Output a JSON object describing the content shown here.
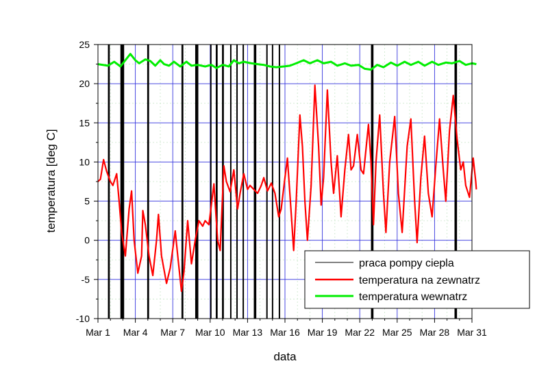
{
  "chart_data": {
    "type": "line",
    "xlabel": "data",
    "ylabel": "temperatura [deg C]",
    "xlim": [
      0,
      30
    ],
    "ylim": [
      -10,
      25
    ],
    "x_ticks": [
      0,
      3,
      6,
      9,
      12,
      15,
      18,
      21,
      24,
      27,
      30
    ],
    "x_tick_labels": [
      "Mar 1",
      "Mar 4",
      "Mar 7",
      "Mar 10",
      "Mar 13",
      "Mar 16",
      "Mar 19",
      "Mar 22",
      "Mar 25",
      "Mar 28",
      "Mar 31"
    ],
    "y_ticks": [
      -10,
      -5,
      0,
      5,
      10,
      15,
      20,
      25
    ],
    "y_tick_labels": [
      "-10",
      "-5",
      "0",
      "5",
      "10",
      "15",
      "20",
      "25"
    ],
    "grid": true,
    "legend_position": "bottom-right",
    "series": [
      {
        "name": "praca pompy ciepla",
        "color": "#000000",
        "style": "vertical-bars",
        "intervals": [
          [
            0.8,
            0.95
          ],
          [
            1.8,
            2.1
          ],
          [
            3.95,
            4.1
          ],
          [
            6.7,
            6.85
          ],
          [
            7.8,
            8.05
          ],
          [
            9.0,
            9.1
          ],
          [
            9.45,
            9.6
          ],
          [
            9.95,
            10.1
          ],
          [
            10.6,
            10.7
          ],
          [
            11.1,
            11.2
          ],
          [
            11.6,
            11.7
          ],
          [
            12.5,
            12.7
          ],
          [
            13.5,
            13.6
          ],
          [
            13.95,
            14.05
          ],
          [
            14.5,
            14.6
          ],
          [
            21.9,
            22.1
          ],
          [
            28.6,
            28.8
          ]
        ]
      },
      {
        "name": "temperatura na zewnatrz",
        "color": "#ff0000",
        "points": [
          [
            0,
            7.5
          ],
          [
            0.2,
            7.8
          ],
          [
            0.45,
            10.3
          ],
          [
            0.7,
            8.8
          ],
          [
            1,
            7.5
          ],
          [
            1.2,
            7.0
          ],
          [
            1.5,
            8.5
          ],
          [
            1.7,
            5
          ],
          [
            1.9,
            1
          ],
          [
            2.2,
            -2
          ],
          [
            2.5,
            4
          ],
          [
            2.7,
            6.3
          ],
          [
            2.9,
            0
          ],
          [
            3.2,
            -4.2
          ],
          [
            3.5,
            -2
          ],
          [
            3.6,
            3.8
          ],
          [
            3.8,
            2
          ],
          [
            4.1,
            -2
          ],
          [
            4.4,
            -4.5
          ],
          [
            4.7,
            0
          ],
          [
            4.85,
            3.3
          ],
          [
            5.1,
            -2
          ],
          [
            5.5,
            -5.5
          ],
          [
            5.8,
            -3.5
          ],
          [
            6.2,
            1.2
          ],
          [
            6.4,
            -2
          ],
          [
            6.7,
            -6.5
          ],
          [
            6.9,
            -4
          ],
          [
            7.2,
            2.5
          ],
          [
            7.5,
            -3
          ],
          [
            7.8,
            0
          ],
          [
            8.1,
            2.5
          ],
          [
            8.4,
            1.8
          ],
          [
            8.6,
            2.5
          ],
          [
            8.9,
            2
          ],
          [
            9.3,
            7.2
          ],
          [
            9.6,
            0
          ],
          [
            9.8,
            -1.3
          ],
          [
            10.1,
            9.5
          ],
          [
            10.3,
            7.5
          ],
          [
            10.6,
            6.2
          ],
          [
            10.9,
            9
          ],
          [
            11.2,
            4
          ],
          [
            11.4,
            6
          ],
          [
            11.7,
            8.5
          ],
          [
            12,
            6.5
          ],
          [
            12.2,
            7
          ],
          [
            12.5,
            6.5
          ],
          [
            12.8,
            6
          ],
          [
            13.1,
            7
          ],
          [
            13.3,
            8
          ],
          [
            13.6,
            6.3
          ],
          [
            13.9,
            7.3
          ],
          [
            14.2,
            6
          ],
          [
            14.5,
            3
          ],
          [
            14.7,
            4
          ],
          [
            15,
            8
          ],
          [
            15.2,
            10.5
          ],
          [
            15.5,
            3.5
          ],
          [
            15.7,
            -1.3
          ],
          [
            15.9,
            5
          ],
          [
            16.2,
            16
          ],
          [
            16.4,
            12
          ],
          [
            16.6,
            5
          ],
          [
            16.8,
            0
          ],
          [
            17.1,
            7
          ],
          [
            17.4,
            19.8
          ],
          [
            17.7,
            12
          ],
          [
            17.9,
            4.5
          ],
          [
            18.1,
            8
          ],
          [
            18.4,
            19.2
          ],
          [
            18.7,
            10
          ],
          [
            18.9,
            6
          ],
          [
            19.2,
            10.8
          ],
          [
            19.5,
            3
          ],
          [
            19.8,
            9
          ],
          [
            20.1,
            13.5
          ],
          [
            20.3,
            9
          ],
          [
            20.5,
            9.5
          ],
          [
            20.8,
            13.5
          ],
          [
            21.1,
            9
          ],
          [
            21.3,
            8.5
          ],
          [
            21.7,
            14.8
          ],
          [
            21.9,
            10
          ],
          [
            22.1,
            2
          ],
          [
            22.3,
            10
          ],
          [
            22.6,
            16
          ],
          [
            22.9,
            6
          ],
          [
            23.1,
            1
          ],
          [
            23.4,
            10
          ],
          [
            23.8,
            15.8
          ],
          [
            24.1,
            6
          ],
          [
            24.4,
            1
          ],
          [
            24.8,
            12
          ],
          [
            25.1,
            15.5
          ],
          [
            25.4,
            5
          ],
          [
            25.6,
            -0.3
          ],
          [
            25.9,
            8
          ],
          [
            26.2,
            13.3
          ],
          [
            26.5,
            6
          ],
          [
            26.8,
            3
          ],
          [
            27.1,
            9.5
          ],
          [
            27.4,
            15.5
          ],
          [
            27.7,
            9
          ],
          [
            27.9,
            5
          ],
          [
            28.2,
            14
          ],
          [
            28.5,
            18.5
          ],
          [
            28.8,
            13
          ],
          [
            29.1,
            9
          ],
          [
            29.3,
            10
          ],
          [
            29.5,
            7
          ],
          [
            29.8,
            5.5
          ],
          [
            30.1,
            10.5
          ],
          [
            30.3,
            7.5
          ],
          [
            30.35,
            6.5
          ]
        ]
      },
      {
        "name": "temperatura wewnatrz",
        "color": "#00ee00",
        "points": [
          [
            0,
            22.5
          ],
          [
            0.8,
            22.3
          ],
          [
            1.3,
            22.8
          ],
          [
            1.8,
            22.2
          ],
          [
            2.6,
            23.8
          ],
          [
            3.0,
            23.0
          ],
          [
            3.3,
            22.6
          ],
          [
            3.8,
            23.1
          ],
          [
            4.2,
            22.9
          ],
          [
            4.6,
            22.3
          ],
          [
            5.0,
            23.0
          ],
          [
            5.3,
            22.5
          ],
          [
            5.7,
            22.3
          ],
          [
            6.1,
            22.8
          ],
          [
            6.6,
            22.2
          ],
          [
            7.1,
            22.8
          ],
          [
            7.5,
            22.3
          ],
          [
            8.0,
            22.4
          ],
          [
            8.6,
            22.2
          ],
          [
            9.1,
            22.4
          ],
          [
            9.5,
            22.0
          ],
          [
            10.0,
            22.4
          ],
          [
            10.5,
            22.2
          ],
          [
            10.9,
            23.0
          ],
          [
            11.3,
            22.6
          ],
          [
            11.7,
            22.8
          ],
          [
            12.3,
            22.6
          ],
          [
            12.8,
            22.5
          ],
          [
            13.3,
            22.4
          ],
          [
            13.8,
            22.2
          ],
          [
            14.3,
            22.1
          ],
          [
            14.9,
            22.2
          ],
          [
            15.4,
            22.3
          ],
          [
            15.9,
            22.6
          ],
          [
            16.5,
            23.0
          ],
          [
            17.0,
            22.6
          ],
          [
            17.6,
            23.0
          ],
          [
            18.1,
            22.6
          ],
          [
            18.7,
            22.8
          ],
          [
            19.2,
            22.3
          ],
          [
            19.8,
            22.6
          ],
          [
            20.3,
            22.3
          ],
          [
            20.9,
            22.4
          ],
          [
            21.4,
            21.9
          ],
          [
            21.9,
            21.8
          ],
          [
            22.4,
            22.4
          ],
          [
            22.9,
            22.1
          ],
          [
            23.5,
            22.7
          ],
          [
            24.0,
            22.3
          ],
          [
            24.6,
            22.8
          ],
          [
            25.1,
            22.4
          ],
          [
            25.7,
            22.8
          ],
          [
            26.2,
            22.3
          ],
          [
            26.8,
            22.8
          ],
          [
            27.3,
            22.4
          ],
          [
            27.9,
            22.7
          ],
          [
            28.4,
            22.6
          ],
          [
            29.0,
            22.9
          ],
          [
            29.5,
            22.4
          ],
          [
            30.0,
            22.6
          ],
          [
            30.35,
            22.5
          ]
        ]
      }
    ]
  }
}
